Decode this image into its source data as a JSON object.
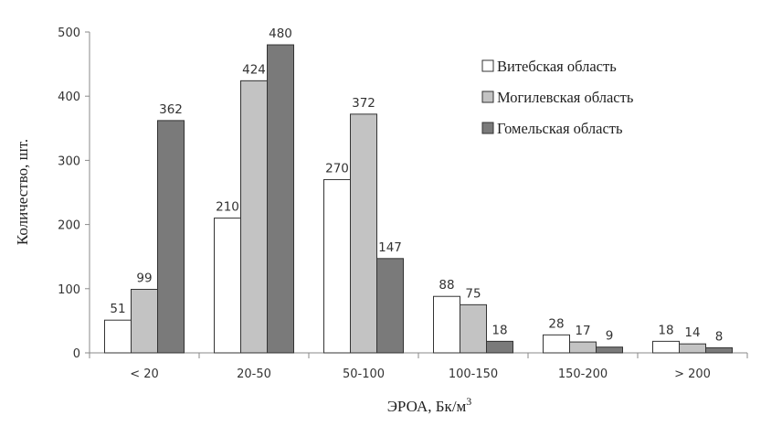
{
  "chart_data": {
    "type": "bar",
    "title": "",
    "xlabel": "ЭРОА, Бк/м",
    "xlabel_superscript": "3",
    "ylabel": "Количество, шт.",
    "ylim": [
      0,
      500
    ],
    "yticks": [
      0,
      100,
      200,
      300,
      400,
      500
    ],
    "grid": false,
    "legend_position": "top-right",
    "categories": [
      "< 20",
      "20-50",
      "50-100",
      "100-150",
      "150-200",
      "> 200"
    ],
    "series": [
      {
        "name": "Витебская область",
        "color": "#ffffff",
        "values": [
          51,
          210,
          270,
          88,
          28,
          18
        ]
      },
      {
        "name": "Могилевская область",
        "color": "#c3c3c3",
        "values": [
          99,
          424,
          372,
          75,
          17,
          14
        ]
      },
      {
        "name": "Гомельская область",
        "color": "#7a7a7a",
        "values": [
          362,
          480,
          147,
          18,
          9,
          8
        ]
      }
    ]
  }
}
